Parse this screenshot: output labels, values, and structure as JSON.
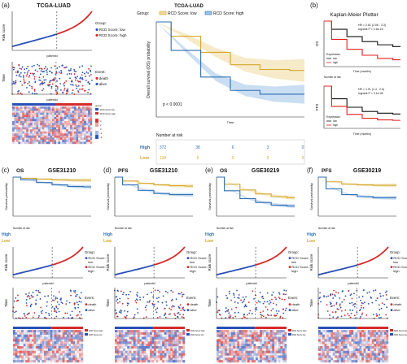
{
  "colors": {
    "high": "#2f6fb5",
    "high_fill": "#9ec3e8",
    "low": "#d4a72c",
    "low_fill": "#efd99a",
    "risk_low": "#2a4fb8",
    "risk_high": "#d62a2a",
    "alive": "#2a4fb8",
    "death": "#d62a2a",
    "km_low": "#111111",
    "km_high": "#e02020"
  },
  "panels": {
    "a": {
      "letter": "(a)",
      "title": "TCGA-LUAD",
      "risk_ylabel": "Risk score",
      "risk_xlabel": "patientid",
      "risk_legend_title": "Group:",
      "risk_legend": [
        "RCD Score: low",
        "RCD Score: high"
      ],
      "time_ylabel": "Time",
      "time_xlabel": "patientid",
      "event_legend_title": "Event:",
      "event_legend": [
        "death",
        "alive"
      ],
      "heat_legend_title": "group",
      "heat_legend": [
        "RCD Score low",
        "RCD Score high"
      ],
      "heat_scale": [
        "4",
        "2",
        "0",
        "-2",
        "-4"
      ],
      "km_title": "TCGA-LUAD",
      "km_legend_title": "Group:",
      "km_legend": [
        "RCD Score: low",
        "RCD Score: high"
      ],
      "km_ylabel": "Overall survival (OS) probability",
      "km_xlabel": "Time",
      "km_pvalue": "p < 0.0001",
      "risk_table_title": "Number at risk",
      "risk_table_rows": [
        {
          "label": "High",
          "values": [
            "372",
            "38",
            "6",
            "3",
            "0"
          ]
        },
        {
          "label": "Low",
          "values": [
            "139",
            "6",
            "0",
            "0",
            "0"
          ]
        }
      ]
    },
    "b": {
      "letter": "(b)",
      "title": "Kaplan-Meier Plotter",
      "os": {
        "ylabel": "OS",
        "stats": "HR = 2.61 (2.06 - 3.3)\nlogrank P = 1.6e-16",
        "legend_title": "Expression",
        "legend": [
          "low",
          "high"
        ],
        "xlabel": "Time (months)",
        "risk_label": "Number at risk"
      },
      "pfs": {
        "ylabel": "PFS",
        "stats": "HR = 1.91 (1.4 - 2.6)\nlogrank P = 3.1e-05",
        "legend_title": "Expression",
        "legend": [
          "low",
          "high"
        ],
        "xlabel": "Time (months)"
      }
    },
    "c": {
      "letter": "(c)",
      "label": "OS",
      "title": "GSE31210"
    },
    "d": {
      "letter": "(d)",
      "label": "PFS",
      "title": "GSE31210"
    },
    "e": {
      "letter": "(e)",
      "label": "OS",
      "title": "GSE30219"
    },
    "f": {
      "letter": "(f)",
      "label": "PFS",
      "title": "GSE30219"
    },
    "small": {
      "km_ylabel": "Survival probability",
      "risk_ylabel": "Risk score",
      "risk_xlabel": "patientid",
      "time_ylabel": "Time",
      "risk_table_title": "Number at risk",
      "row_high": "High",
      "row_low": "Low",
      "risk_legend_title": "Group:",
      "risk_legend": [
        "RCD Score:\nlow",
        "RCD Score:\nhigh"
      ],
      "event_legend_title": "Event:",
      "event_legend": [
        "death",
        "alive"
      ],
      "heat_legend": [
        "RCD Score high",
        "RCD Score low"
      ]
    }
  },
  "chart_data": [
    {
      "type": "line",
      "panel": "a",
      "chart": "risk score curve",
      "series": [
        {
          "name": "RCD Score: low",
          "values": [
            0.2,
            0.35,
            0.5,
            0.62,
            0.72,
            0.8,
            0.88,
            0.95
          ]
        },
        {
          "name": "RCD Score: high",
          "values": [
            1.0,
            1.1,
            1.25,
            1.45,
            1.7,
            2.1,
            2.8
          ]
        }
      ]
    },
    {
      "type": "line",
      "panel": "a",
      "chart": "KM overall survival",
      "x": [
        0,
        50,
        100,
        150,
        200,
        250
      ],
      "series": [
        {
          "name": "RCD Score: low",
          "values": [
            1.0,
            0.85,
            0.68,
            0.55,
            0.5,
            0.49
          ]
        },
        {
          "name": "RCD Score: high",
          "values": [
            1.0,
            0.7,
            0.42,
            0.28,
            0.24,
            0.24
          ]
        }
      ],
      "pvalue": "p < 0.0001",
      "ylim": [
        0,
        1
      ]
    },
    {
      "type": "line",
      "panel": "b",
      "chart": "OS",
      "series": [
        {
          "name": "low",
          "values": [
            1.0,
            0.82,
            0.66,
            0.55,
            0.48,
            0.44
          ]
        },
        {
          "name": "high",
          "values": [
            1.0,
            0.6,
            0.38,
            0.25,
            0.18,
            0.15
          ]
        }
      ],
      "hr": "2.61 (2.06 - 3.3)",
      "logrank_p": "1.6e-16"
    },
    {
      "type": "line",
      "panel": "b",
      "chart": "PFS",
      "series": [
        {
          "name": "low",
          "values": [
            1.0,
            0.7,
            0.5,
            0.4,
            0.36,
            0.34
          ]
        },
        {
          "name": "high",
          "values": [
            1.0,
            0.52,
            0.33,
            0.24,
            0.2,
            0.19
          ]
        }
      ],
      "hr": "1.91 (1.4 - 2.6)",
      "logrank_p": "3.1e-05"
    },
    {
      "type": "line",
      "panel": "c",
      "chart": "GSE31210 OS",
      "series": [
        {
          "name": "Low",
          "values": [
            1.0,
            0.97,
            0.95,
            0.93,
            0.92,
            0.92
          ]
        },
        {
          "name": "High",
          "values": [
            1.0,
            0.93,
            0.86,
            0.8,
            0.76,
            0.75
          ]
        }
      ]
    },
    {
      "type": "line",
      "panel": "d",
      "chart": "GSE31210 PFS",
      "series": [
        {
          "name": "Low",
          "values": [
            1.0,
            0.9,
            0.84,
            0.8,
            0.78,
            0.77
          ]
        },
        {
          "name": "High",
          "values": [
            1.0,
            0.8,
            0.66,
            0.58,
            0.55,
            0.55
          ]
        }
      ]
    },
    {
      "type": "line",
      "panel": "e",
      "chart": "GSE30219 OS",
      "series": [
        {
          "name": "Low",
          "values": [
            1.0,
            0.82,
            0.67,
            0.57,
            0.5,
            0.47
          ]
        },
        {
          "name": "High",
          "values": [
            1.0,
            0.65,
            0.45,
            0.35,
            0.28,
            0.26
          ]
        }
      ]
    },
    {
      "type": "line",
      "panel": "f",
      "chart": "GSE30219 PFS",
      "series": [
        {
          "name": "Low",
          "values": [
            1.0,
            0.88,
            0.82,
            0.8,
            0.79,
            0.79
          ]
        },
        {
          "name": "High",
          "values": [
            1.0,
            0.7,
            0.55,
            0.5,
            0.47,
            0.47
          ]
        }
      ]
    }
  ]
}
